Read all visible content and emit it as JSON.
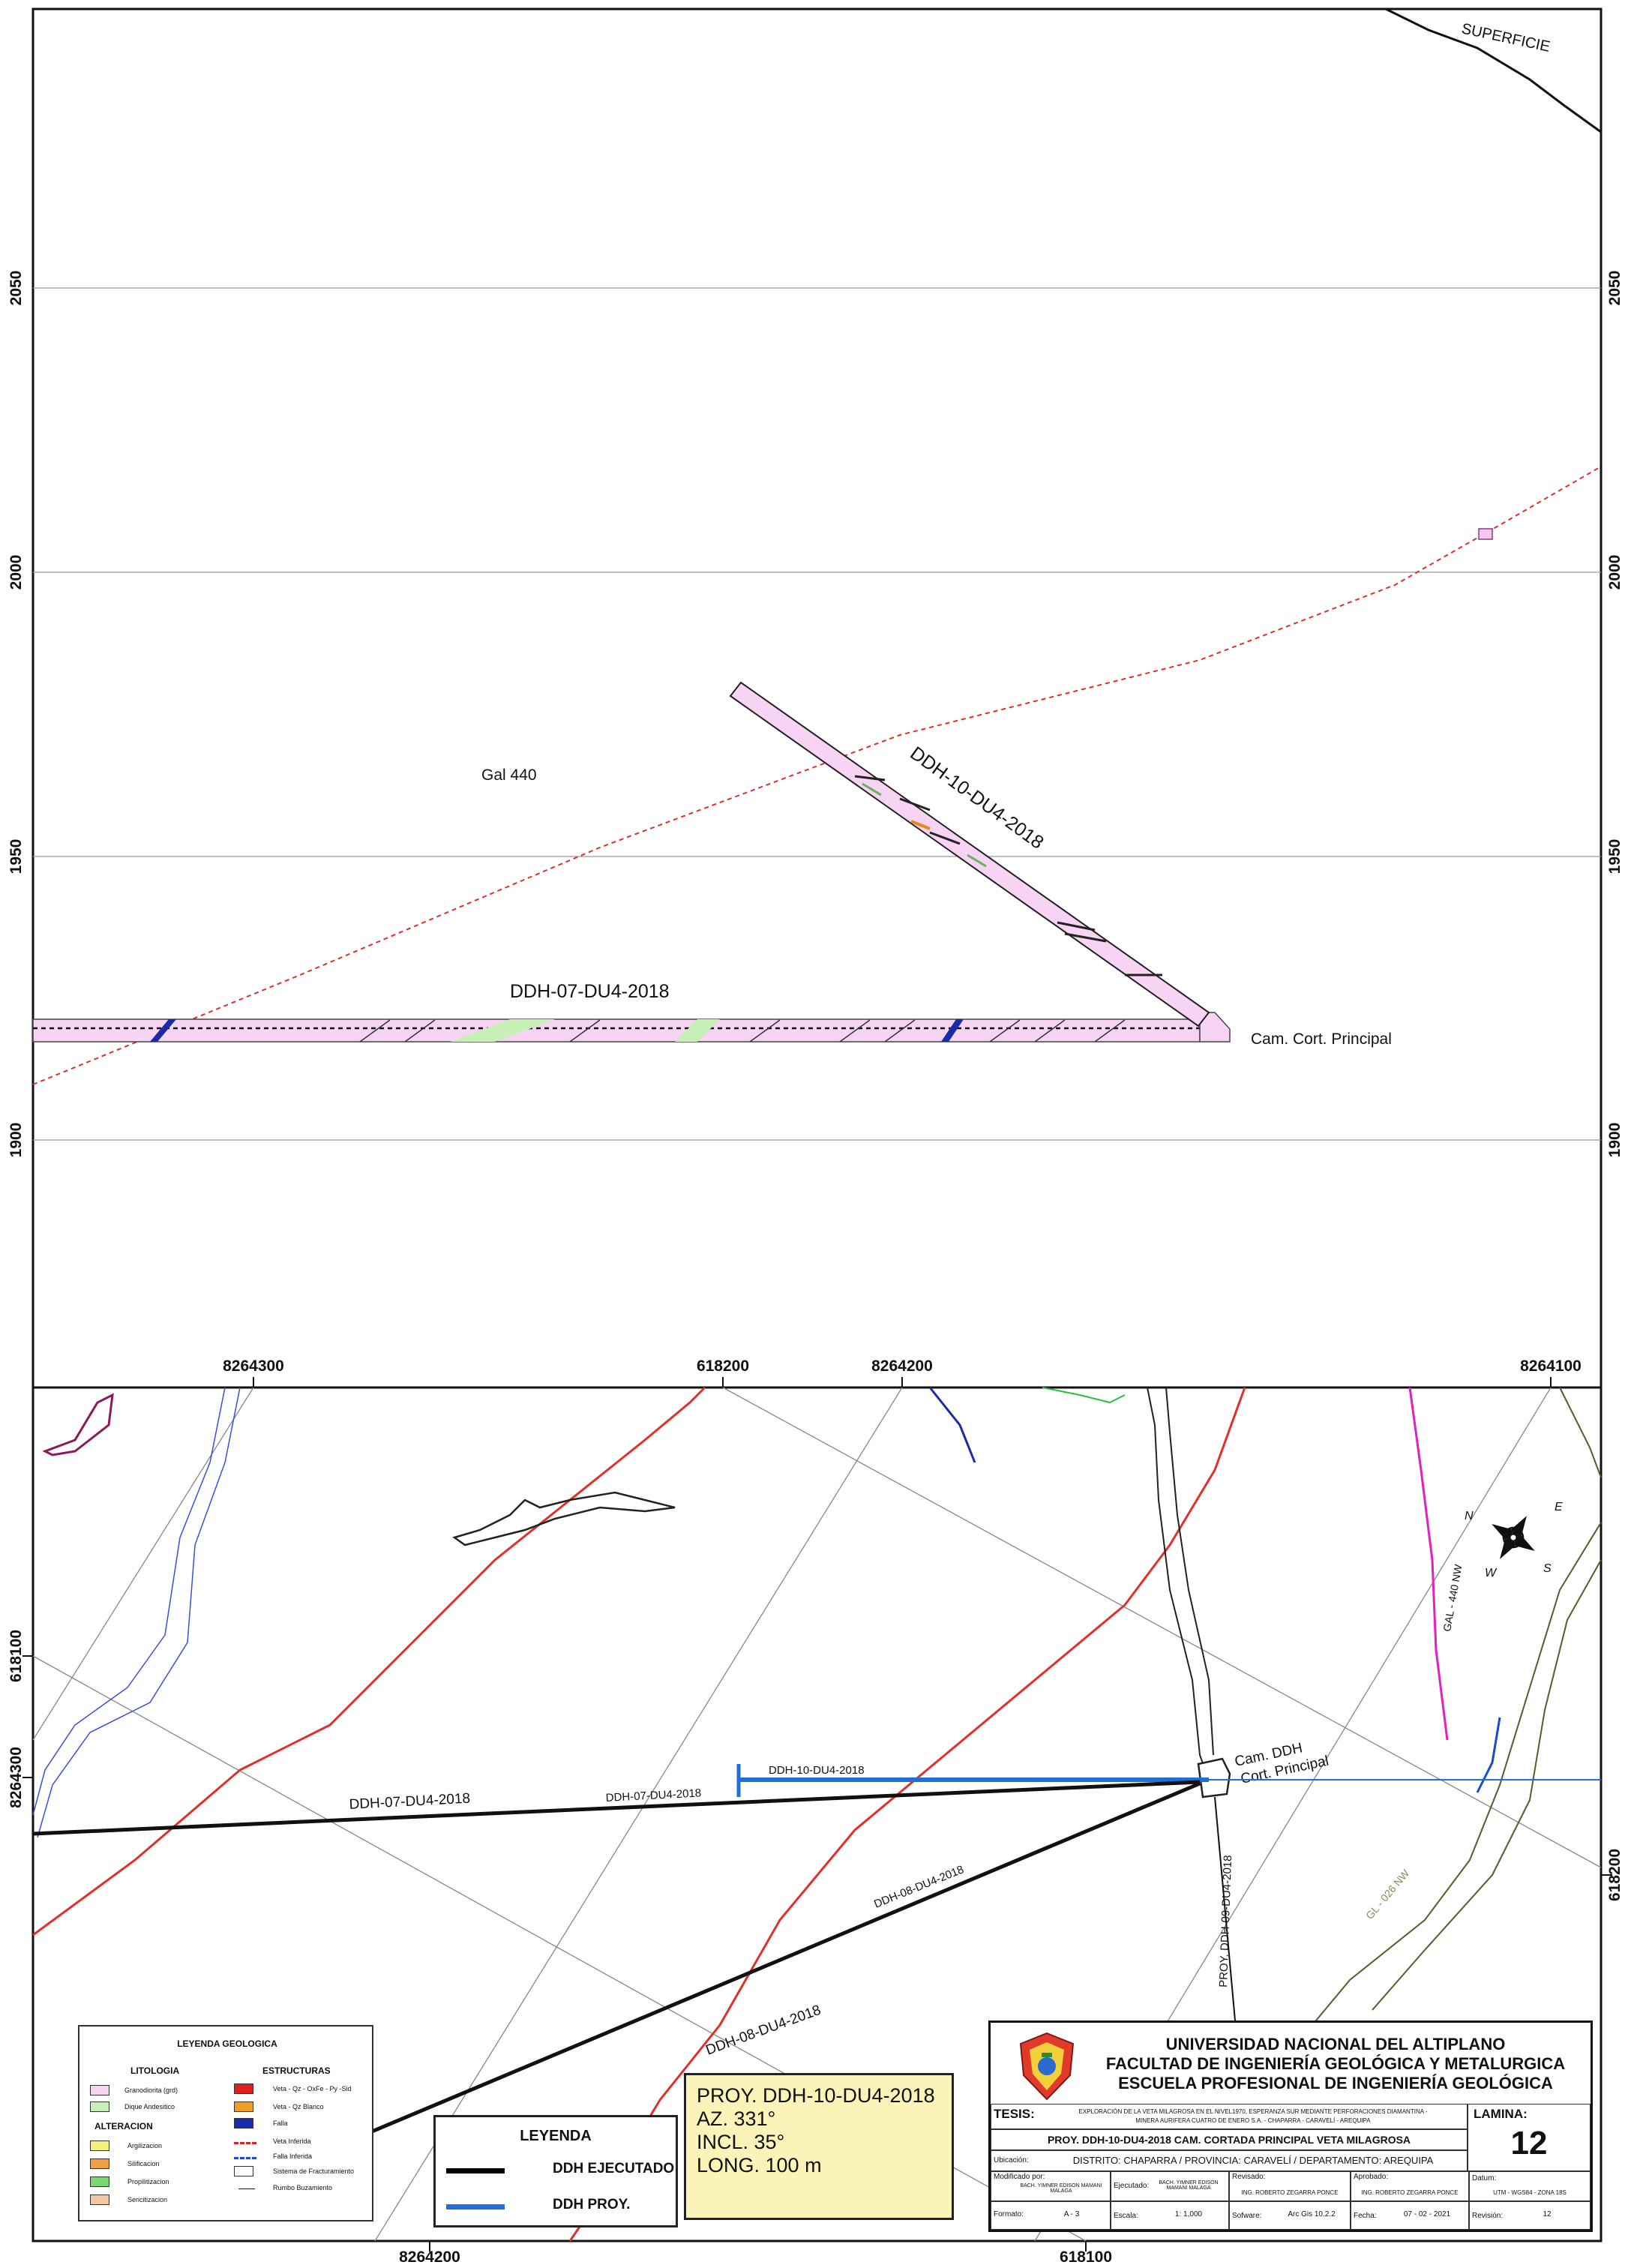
{
  "section": {
    "surface_label": "SUPERFICIE",
    "elevation_ticks": [
      "2050",
      "2000",
      "1950",
      "1900"
    ],
    "gallery_label": "Gal 440",
    "drill_label_10": "DDH-10-DU4-2018",
    "drill_label_07": "DDH-07-DU4-2018",
    "chamber_label": "Cam. Cort. Principal"
  },
  "plan": {
    "top_ticks": [
      "8264300",
      "618200",
      "8264200",
      "8264100"
    ],
    "bottom_ticks": [
      "8264200",
      "618100"
    ],
    "left_ticks": [
      "618100",
      "8264300"
    ],
    "right_ticks": [
      "618200"
    ],
    "chamber_label_line1": "Cam. DDH",
    "chamber_label_line2": "Cort. Principal",
    "ddh10_label": "DDH-10-DU4-2018",
    "ddh07_label_a": "DDH-07-DU4-2018",
    "ddh07_label_b": "DDH-07-DU4-2018",
    "ddh08_label_a": "DDH-08-DU4-2018",
    "ddh08_label_b": "DDH-08-DU4-2018",
    "ddh09_label": "PROY. DDH-09-DU4-2018",
    "gal_label": "GAL - 440 NW",
    "gl_label": "GL - 026 NW",
    "compass": {
      "n": "N",
      "e": "E",
      "s": "S",
      "w": "W"
    }
  },
  "legend": {
    "title": "LEYENDA",
    "executed": "DDH EJECUTADO",
    "projected": "DDH PROY.",
    "executed_color": "#000000",
    "projected_color": "#1e6fd9"
  },
  "proj_info": {
    "line1": "PROY.   DDH-10-DU4-2018",
    "line2": "AZ. 331°",
    "line3": "INCL. 35°",
    "line4": "LONG. 100 m"
  },
  "geo_legend": {
    "title": "LEYENDA GEOLOGICA",
    "litologia": "LITOLOGIA",
    "granodiorita": "Granodiorita (grd)",
    "dique": "Dique Andesitico",
    "alteracion": "ALTERACION",
    "argilizacion": "Argilizacion",
    "silificacion": "Silificacion",
    "propilitizacion": "Propilitizacion",
    "sericitizacion": "Sericitizacion",
    "estructuras": "ESTRUCTURAS",
    "veta_qz": "Veta - Qz - OxFe - Py -Sid",
    "veta_blanco": "Veta - Qz Blanco",
    "falla": "Falla",
    "veta_inferida": "Veta Inferida",
    "falla_inferida": "Falla Inferida",
    "sistema": "Sistema de Fracturamiento",
    "rumbo": "Rumbo Buzamiento"
  },
  "title_block": {
    "univ": "UNIVERSIDAD NACIONAL DEL ALTIPLANO",
    "faculty": "FACULTAD DE INGENIERÍA GEOLÓGICA Y METALURGICA",
    "school": "ESCUELA PROFESIONAL DE INGENIERÍA GEOLÓGICA",
    "tesis_label": "TESIS:",
    "tesis_text1": "EXPLORACIÓN DE LA VETA MILAGROSA EN EL NIVEL1970, ESPERANZA SUR MEDIANTE PERFORACIONES DIAMANTINA -",
    "tesis_text2": "MINERA AURIFERA CUATRO DE ENERO S.A. - CHAPARRA - CARAVELÍ - AREQUIPA",
    "lamina_label": "LAMINA:",
    "lamina_num": "12",
    "proj_title": "PROY. DDH-10-DU4-2018 CAM. CORTADA PRINCIPAL VETA MILAGROSA",
    "ubicacion_label": "Ubicación:",
    "ubicacion": "DISTRITO: CHAPARRA / PROVINCIA: CARAVELÍ / DEPARTAMENTO: AREQUIPA",
    "modificado_label": "Modificado por:",
    "modificado": "BACH. YIMNER EDISON MAMANI MALAGA",
    "ejecutado_label": "Ejecutado:",
    "ejecutado": "BACH. YIMNER EDISON MAMANI MALAGA",
    "revisado_label": "Revisado:",
    "revisado": "ING. ROBERTO ZEGARRA PONCE",
    "aprobado_label": "Aprobado:",
    "aprobado": "ING. ROBERTO ZEGARRA PONCE",
    "datum_label": "Datum:",
    "datum": "UTM - WGS84 - ZONA 18S",
    "formato_label": "Formato:",
    "formato": "A - 3",
    "escala_label": "Escala:",
    "escala": "1: 1,000",
    "software_label": "Sofware:",
    "software": "Arc Gis 10.2.2",
    "fecha_label": "Fecha:",
    "fecha": "07 - 02 - 2021",
    "revision_label": "Revisión:",
    "revision": "12"
  }
}
